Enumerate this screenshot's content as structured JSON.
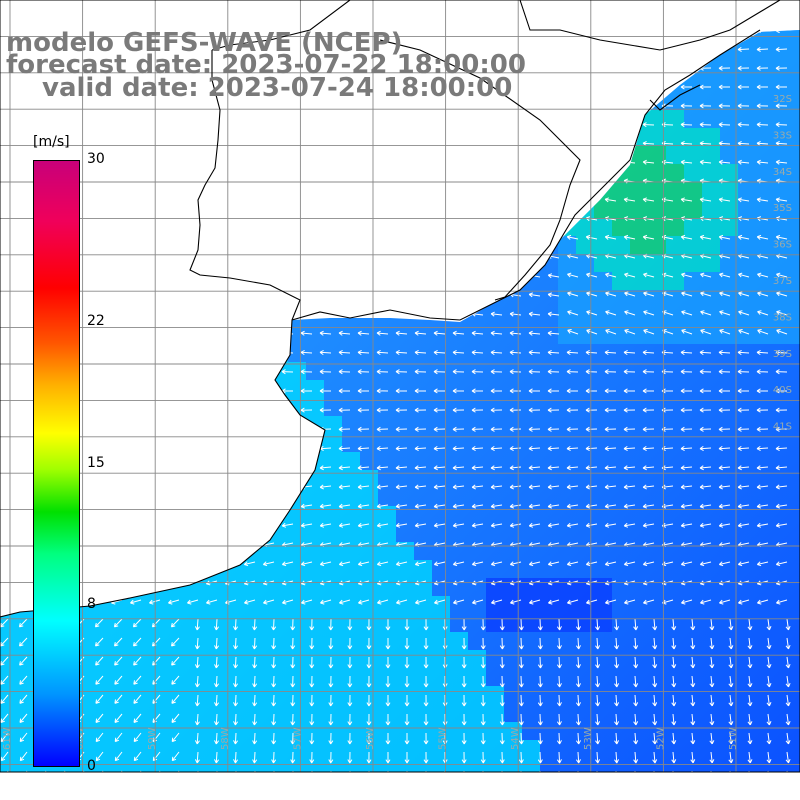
{
  "header": {
    "line1": "modelo GEFS-WAVE (NCEP)",
    "line2": "forecast date: 2023-07-22 18:00:00",
    "line3": "valid date: 2023-07-24 18:00:00"
  },
  "colorbar": {
    "unit": "[m/s]",
    "ticks": [
      {
        "label": "30",
        "value": 30
      },
      {
        "label": "22",
        "value": 22
      },
      {
        "label": "15",
        "value": 15
      },
      {
        "label": "8",
        "value": 8
      },
      {
        "label": "0",
        "value": 0
      }
    ],
    "range": [
      0,
      30
    ]
  },
  "axes": {
    "latitude_labels": [
      "32S",
      "33S",
      "34S",
      "35S",
      "36S",
      "37S",
      "38S",
      "39S",
      "40S",
      "41S"
    ],
    "longitude_labels": [
      "61W",
      "60W",
      "59W",
      "58W",
      "57W",
      "56W",
      "55W",
      "54W",
      "53W",
      "52W",
      "51W"
    ]
  },
  "colors": {
    "land": "#ffffff",
    "coast": "#000000",
    "grid": "#888888",
    "arrows": "#ffffff",
    "labels": "#7a7a7a"
  }
}
